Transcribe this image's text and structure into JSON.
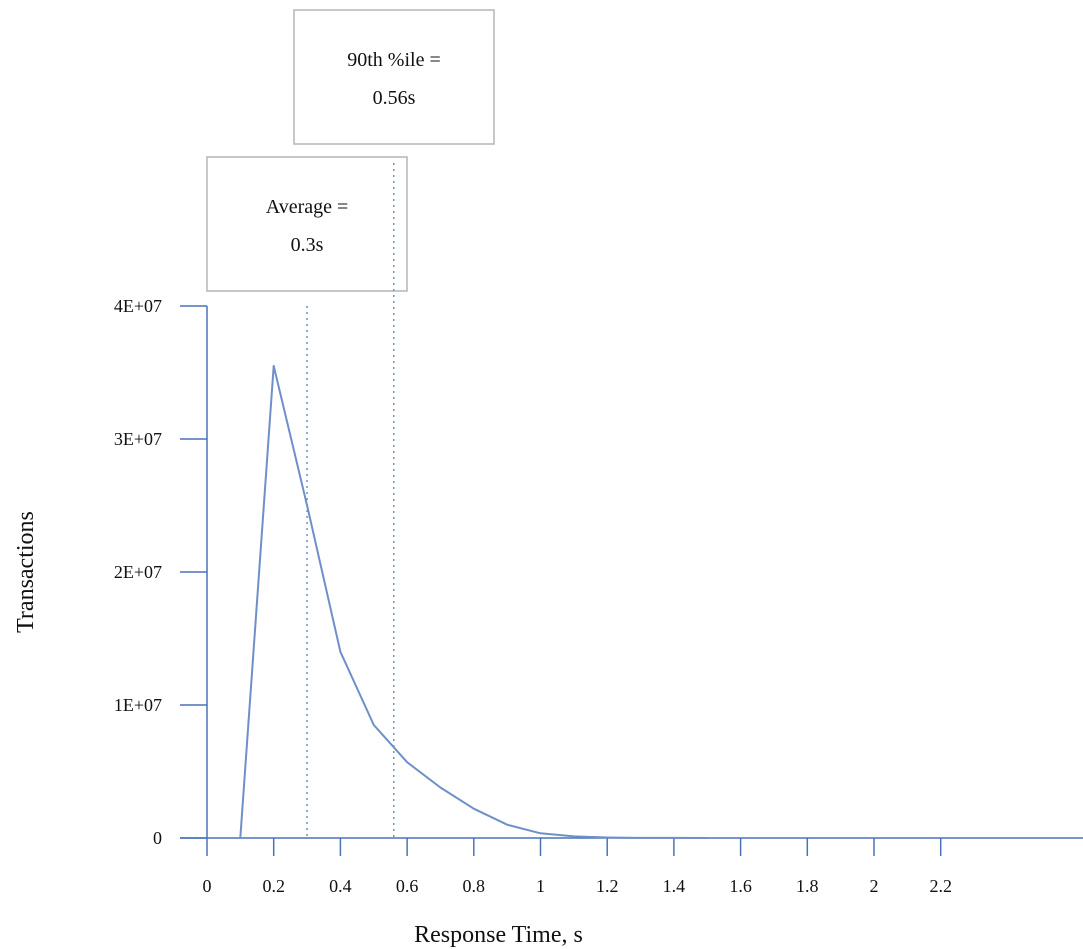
{
  "chart_data": {
    "type": "line",
    "xlabel": "Response Time, s",
    "ylabel": "Transactions",
    "xlim": [
      0,
      2.65
    ],
    "ylim": [
      0,
      40000000
    ],
    "x_ticks": [
      0,
      0.2,
      0.4,
      0.6,
      0.8,
      1,
      1.2,
      1.4,
      1.6,
      1.8,
      2,
      2.2
    ],
    "x_tick_labels": [
      "0",
      "0.2",
      "0.4",
      "0.6",
      "0.8",
      "1",
      "1.2",
      "1.4",
      "1.6",
      "1.8",
      "2",
      "2.2"
    ],
    "y_ticks": [
      0,
      10000000,
      20000000,
      30000000,
      40000000
    ],
    "y_tick_labels": [
      "0",
      "1E+07",
      "2E+07",
      "3E+07",
      "4E+07"
    ],
    "grid": false,
    "line_color": "#6f8fc8",
    "axis_color": "#4a72b8",
    "series": [
      {
        "x": [
          0.1,
          0.2,
          0.3,
          0.4,
          0.5,
          0.6,
          0.7,
          0.8,
          0.9,
          1.0,
          1.1,
          1.2,
          1.3,
          1.4,
          1.5
        ],
        "y": [
          0,
          35500000,
          25000000,
          14000000,
          8500000,
          5700000,
          3800000,
          2200000,
          1000000,
          350000,
          120000,
          40000,
          10000,
          5000,
          0
        ]
      }
    ],
    "annotations": [
      {
        "x": 0.3,
        "label_line1": "Average =",
        "label_line2": "0.3s"
      },
      {
        "x": 0.56,
        "label_line1": "90th %ile =",
        "label_line2": "0.56s"
      }
    ]
  }
}
